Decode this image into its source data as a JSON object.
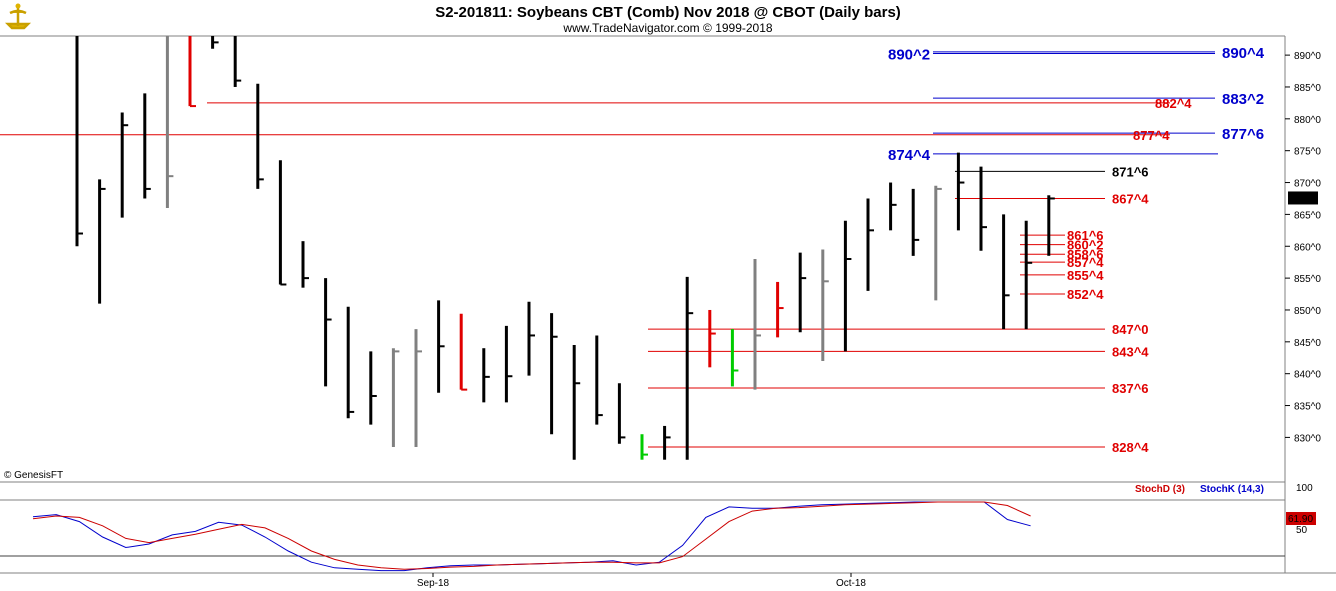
{
  "title": "S2-201811:  Soybeans CBT (Comb) Nov 2018 @ CBOT  (Daily bars)",
  "subtitle": "www.TradeNavigator.com © 1999-2018",
  "copyright": "© GenesisFT",
  "colors": {
    "up": "#000000",
    "down_red": "#e00000",
    "gray": "#808080",
    "green": "#00cc00",
    "blue": "#0000cc",
    "red": "#cc0000"
  },
  "price_axis": {
    "min": 823,
    "max": 893,
    "ticks": [
      "890^0",
      "885^0",
      "880^0",
      "875^0",
      "870^0",
      "865^0",
      "860^0",
      "855^0",
      "850^0",
      "845^0",
      "840^0",
      "835^0",
      "830^0"
    ],
    "tick_values": [
      890,
      885,
      880,
      875,
      870,
      865,
      860,
      855,
      850,
      845,
      840,
      835,
      830
    ]
  },
  "last_price": "867^4",
  "x_labels": [
    {
      "label": "Sep-18",
      "bar": 18
    },
    {
      "label": "Oct-18",
      "bar": 37
    }
  ],
  "chart_data": {
    "type": "ohlc",
    "title": "S2-201811:  Soybeans CBT (Comb) Nov 2018 @ CBOT  (Daily bars)",
    "ylim": [
      823,
      893
    ],
    "bars": [
      {
        "h": 893,
        "l": 860,
        "c": 862,
        "color": "black"
      },
      {
        "h": 870.5,
        "l": 851,
        "c": 869,
        "color": "black"
      },
      {
        "h": 881,
        "l": 864.5,
        "c": 879,
        "color": "black"
      },
      {
        "h": 884,
        "l": 867.5,
        "c": 869,
        "color": "black"
      },
      {
        "h": 893,
        "l": 866,
        "c": 871,
        "color": "gray"
      },
      {
        "h": 893,
        "l": 882,
        "c": 882,
        "color": "red"
      },
      {
        "h": 893,
        "l": 891,
        "c": 892,
        "color": "black"
      },
      {
        "h": 893,
        "l": 885,
        "c": 886,
        "color": "black"
      },
      {
        "h": 885.5,
        "l": 869,
        "c": 870.5,
        "color": "black"
      },
      {
        "h": 873.5,
        "l": 854,
        "c": 854,
        "color": "black"
      },
      {
        "h": 860.8,
        "l": 853.5,
        "c": 855,
        "color": "black"
      },
      {
        "h": 855,
        "l": 838,
        "c": 848.5,
        "color": "black"
      },
      {
        "h": 850.5,
        "l": 833,
        "c": 834,
        "color": "black"
      },
      {
        "h": 843.5,
        "l": 832,
        "c": 836.5,
        "color": "black"
      },
      {
        "h": 844,
        "l": 828.5,
        "c": 843.5,
        "color": "gray"
      },
      {
        "h": 847,
        "l": 828.5,
        "c": 843.5,
        "color": "gray"
      },
      {
        "h": 851.5,
        "l": 837,
        "c": 844.3,
        "color": "black"
      },
      {
        "h": 849.4,
        "l": 837.5,
        "c": 837.5,
        "color": "red"
      },
      {
        "h": 844,
        "l": 835.5,
        "c": 839.5,
        "color": "black"
      },
      {
        "h": 847.5,
        "l": 835.5,
        "c": 839.6,
        "color": "black"
      },
      {
        "h": 851.3,
        "l": 839.7,
        "c": 846,
        "color": "black"
      },
      {
        "h": 849.5,
        "l": 830.5,
        "c": 845.8,
        "color": "black"
      },
      {
        "h": 844.5,
        "l": 826.5,
        "c": 838.5,
        "color": "black"
      },
      {
        "h": 846,
        "l": 832,
        "c": 833.5,
        "color": "black"
      },
      {
        "h": 838.5,
        "l": 829,
        "c": 830,
        "color": "black"
      },
      {
        "h": 830.5,
        "l": 826.5,
        "c": 827.3,
        "color": "green"
      },
      {
        "h": 831.8,
        "l": 826.5,
        "c": 830,
        "color": "black"
      },
      {
        "h": 855.2,
        "l": 826.5,
        "c": 849.5,
        "color": "black"
      },
      {
        "h": 850,
        "l": 841,
        "c": 846.3,
        "color": "red"
      },
      {
        "h": 847,
        "l": 838,
        "c": 840.5,
        "color": "green"
      },
      {
        "h": 858,
        "l": 837.5,
        "c": 846,
        "color": "gray"
      },
      {
        "h": 854.4,
        "l": 845.7,
        "c": 850.3,
        "color": "red"
      },
      {
        "h": 859,
        "l": 846.5,
        "c": 855,
        "color": "black"
      },
      {
        "h": 859.5,
        "l": 842,
        "c": 854.5,
        "color": "gray"
      },
      {
        "h": 864,
        "l": 843.5,
        "c": 858,
        "color": "black"
      },
      {
        "h": 867.5,
        "l": 853,
        "c": 862.5,
        "color": "black"
      },
      {
        "h": 870,
        "l": 862.5,
        "c": 866.5,
        "color": "black"
      },
      {
        "h": 869,
        "l": 858.5,
        "c": 861,
        "color": "black"
      },
      {
        "h": 869.5,
        "l": 851.5,
        "c": 869,
        "color": "gray"
      },
      {
        "h": 874.7,
        "l": 862.5,
        "c": 870,
        "color": "black"
      },
      {
        "h": 872.5,
        "l": 859.3,
        "c": 863,
        "color": "black"
      },
      {
        "h": 865,
        "l": 847,
        "c": 852.3,
        "color": "black"
      },
      {
        "h": 864,
        "l": 847,
        "c": 857.4,
        "color": "black"
      },
      {
        "h": 868,
        "l": 858.5,
        "c": 867.5,
        "color": "black"
      }
    ],
    "levels": [
      {
        "label": "890^4",
        "price": 890.5,
        "color": "blue",
        "side": "right"
      },
      {
        "label": "890^2",
        "price": 890.25,
        "color": "blue",
        "side": "left"
      },
      {
        "label": "883^2",
        "price": 883.25,
        "color": "blue",
        "side": "right"
      },
      {
        "label": "882^4",
        "price": 882.5,
        "color": "red",
        "side": "right"
      },
      {
        "label": "877^6",
        "price": 877.75,
        "color": "blue",
        "side": "right"
      },
      {
        "label": "877^4",
        "price": 877.5,
        "color": "red",
        "side": "right"
      },
      {
        "label": "874^4",
        "price": 874.5,
        "color": "blue",
        "side": "left"
      },
      {
        "label": "871^6",
        "price": 871.75,
        "color": "black",
        "side": "right"
      },
      {
        "label": "867^4",
        "price": 867.5,
        "color": "red",
        "side": "right"
      },
      {
        "label": "861^6",
        "price": 861.75,
        "color": "red",
        "side": "right"
      },
      {
        "label": "860^2",
        "price": 860.25,
        "color": "red",
        "side": "right"
      },
      {
        "label": "858^6",
        "price": 858.75,
        "color": "red",
        "side": "right"
      },
      {
        "label": "857^4",
        "price": 857.5,
        "color": "red",
        "side": "right"
      },
      {
        "label": "855^4",
        "price": 855.5,
        "color": "red",
        "side": "right"
      },
      {
        "label": "852^4",
        "price": 852.5,
        "color": "red",
        "side": "right"
      },
      {
        "label": "847^0",
        "price": 847.0,
        "color": "red",
        "side": "right"
      },
      {
        "label": "843^4",
        "price": 843.5,
        "color": "red",
        "side": "right"
      },
      {
        "label": "837^6",
        "price": 837.75,
        "color": "red",
        "side": "right"
      },
      {
        "label": "828^4",
        "price": 828.5,
        "color": "red",
        "side": "right"
      }
    ],
    "stochastic": {
      "labels": [
        "StochD (3)",
        "StochK (14,3)"
      ],
      "axis_labels": [
        "100",
        "50"
      ],
      "value_label": "61.90",
      "ylim": [
        0,
        100
      ],
      "stoch_k": [
        79,
        82,
        72,
        50,
        35,
        40,
        53,
        58,
        71,
        67,
        50,
        30,
        14,
        6,
        4,
        2,
        2,
        6,
        9,
        10,
        10,
        11,
        12,
        13,
        14,
        16,
        10,
        14,
        38,
        78,
        93,
        91,
        91,
        94,
        96,
        97,
        98,
        99,
        100,
        100,
        100,
        100,
        75,
        66
      ],
      "stoch_d": [
        76,
        80,
        78,
        66,
        48,
        42,
        48,
        54,
        61,
        68,
        63,
        48,
        30,
        18,
        10,
        6,
        4,
        5,
        7,
        8,
        10,
        11,
        12,
        13,
        14,
        14,
        13,
        13,
        22,
        47,
        72,
        87,
        91,
        92,
        94,
        96,
        97,
        98,
        99,
        100,
        100,
        100,
        95,
        80
      ]
    }
  }
}
